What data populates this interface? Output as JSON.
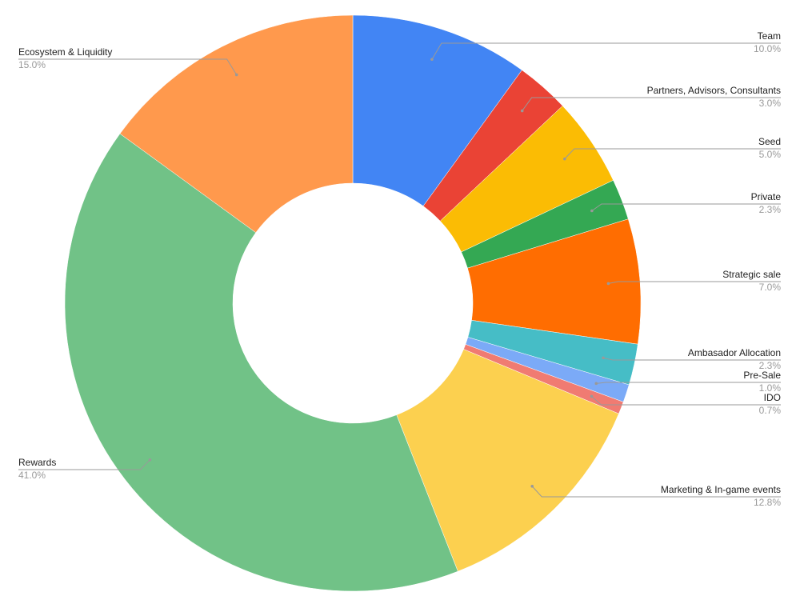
{
  "chart_data": {
    "type": "donut",
    "categories": [
      "Team",
      "Partners, Advisors, Consultants",
      "Seed",
      "Private",
      "Strategic sale",
      "Ambasador Allocation",
      "Pre-Sale",
      "IDO",
      "Marketing & In-game events",
      "Rewards",
      "Ecosystem & Liquidity"
    ],
    "values": [
      10.0,
      3.0,
      5.0,
      2.3,
      7.0,
      2.3,
      1.0,
      0.7,
      12.8,
      41.0,
      15.0
    ],
    "value_labels": [
      "10.0%",
      "3.0%",
      "5.0%",
      "2.3%",
      "7.0%",
      "2.3%",
      "1.0%",
      "0.7%",
      "12.8%",
      "41.0%",
      "15.0%"
    ],
    "colors": [
      "#4285f4",
      "#ea4335",
      "#fbbc04",
      "#34a853",
      "#ff6d01",
      "#46bdc6",
      "#7baaf7",
      "#f07b72",
      "#fcd04f",
      "#71c287",
      "#ff994d"
    ]
  }
}
